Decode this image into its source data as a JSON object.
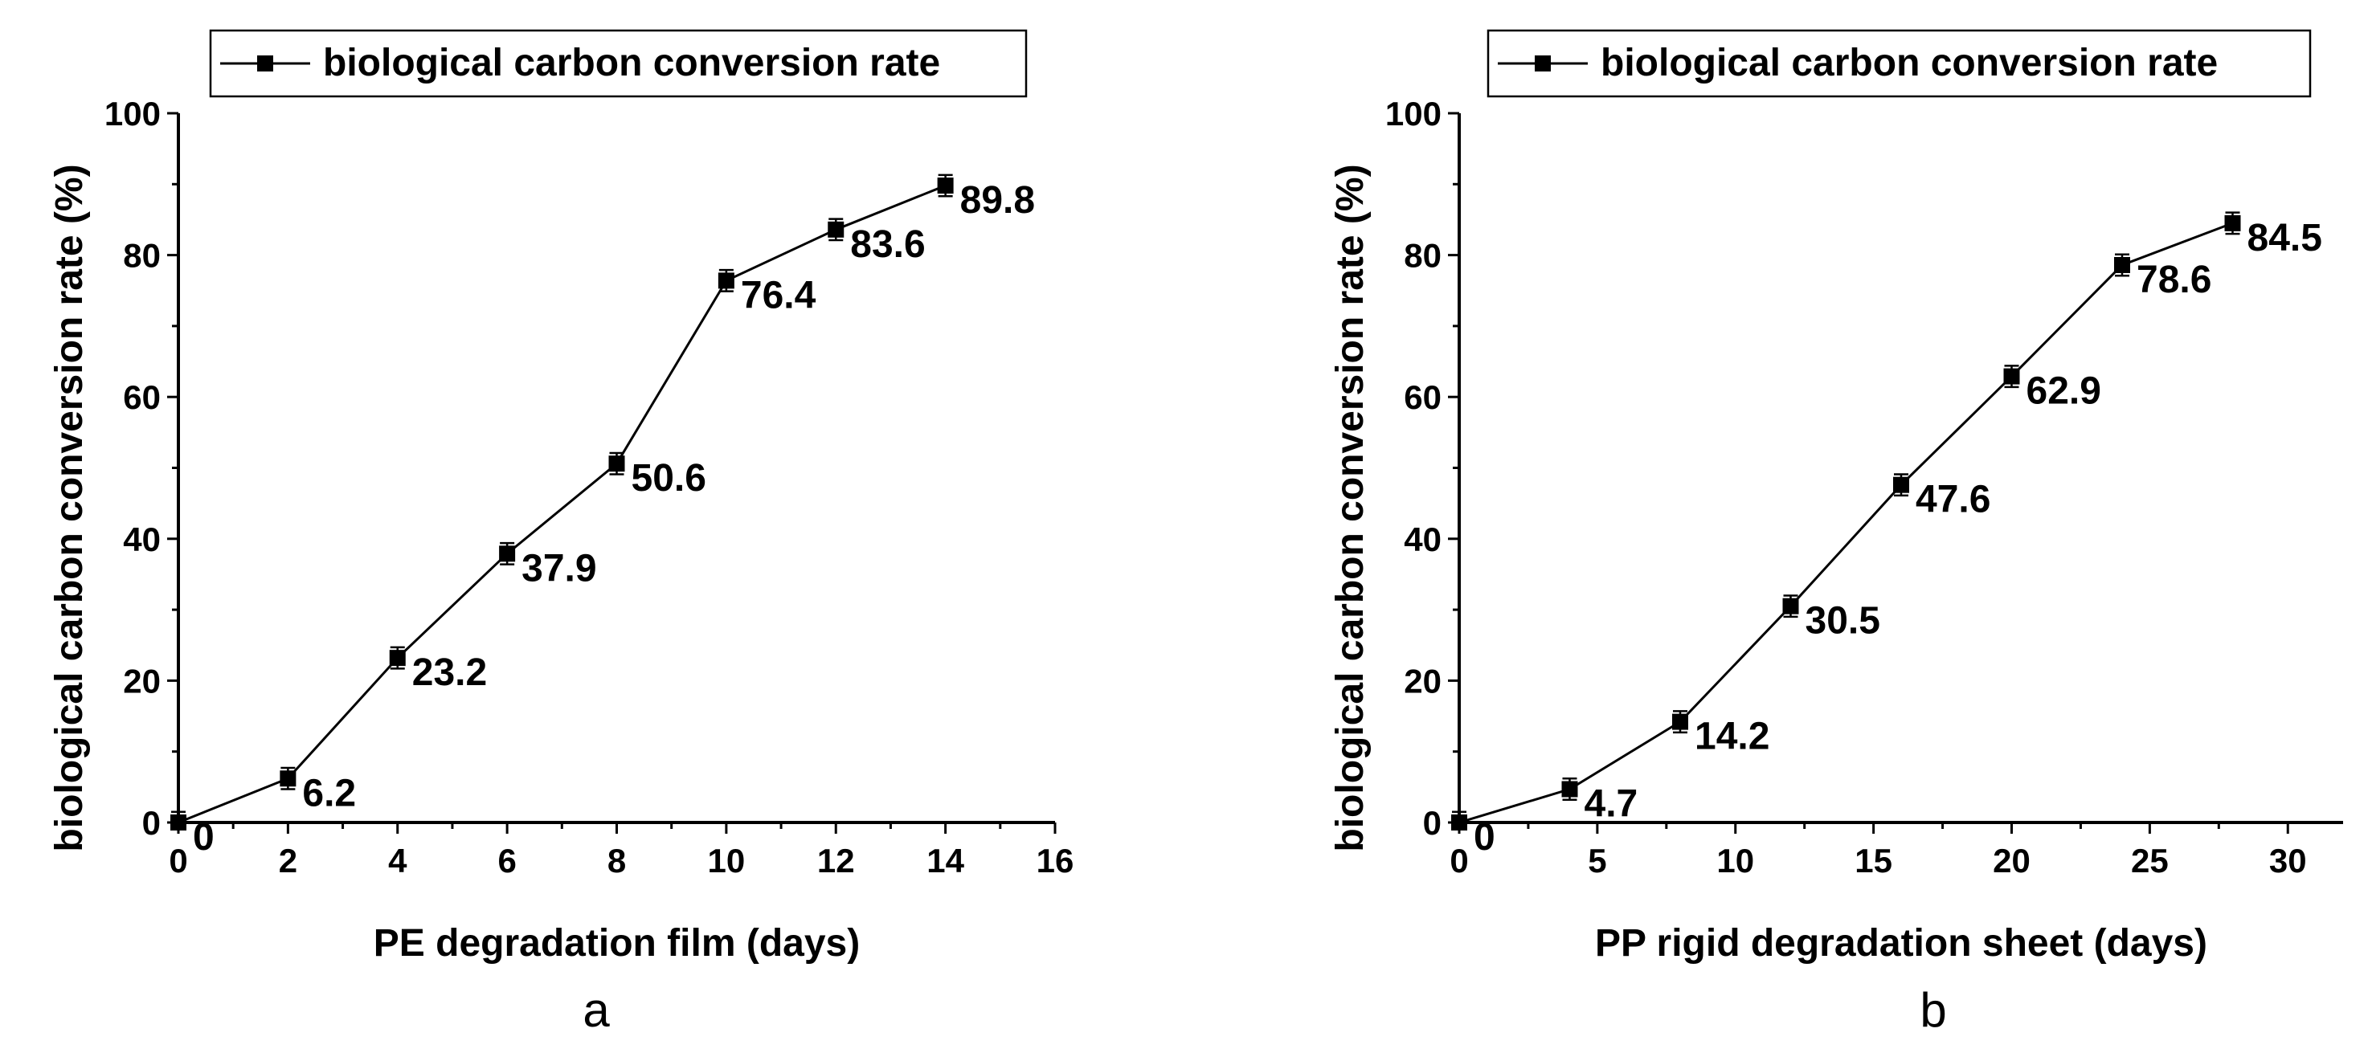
{
  "chart_data": [
    {
      "type": "line",
      "panel_label": "a",
      "legend": [
        "biological carbon conversion rate"
      ],
      "xlabel": "PE degradation film (days)",
      "ylabel": "biological carbon conversion rate (%)",
      "xlim": [
        0,
        16
      ],
      "ylim": [
        0,
        100
      ],
      "x_ticks": [
        0,
        2,
        4,
        6,
        8,
        10,
        12,
        14,
        16
      ],
      "y_ticks": [
        0,
        20,
        40,
        60,
        80,
        100
      ],
      "series": [
        {
          "name": "biological carbon conversion rate",
          "x": [
            0,
            2,
            4,
            6,
            8,
            10,
            12,
            14
          ],
          "y": [
            0,
            6.2,
            23.2,
            37.9,
            50.6,
            76.4,
            83.6,
            89.8
          ],
          "labels": [
            "0",
            "6.2",
            "23.2",
            "37.9",
            "50.6",
            "76.4",
            "83.6",
            "89.8"
          ],
          "error": 1.5
        }
      ]
    },
    {
      "type": "line",
      "panel_label": "b",
      "legend": [
        "biological carbon conversion rate"
      ],
      "xlabel": "PP rigid degradation sheet (days)",
      "ylabel": "biological carbon conversion rate (%)",
      "xlim": [
        0,
        32
      ],
      "ylim": [
        0,
        100
      ],
      "x_ticks": [
        0,
        5,
        10,
        15,
        20,
        25,
        30
      ],
      "y_ticks": [
        0,
        20,
        40,
        60,
        80,
        100
      ],
      "series": [
        {
          "name": "biological carbon conversion rate",
          "x": [
            0,
            4,
            8,
            12,
            16,
            20,
            24,
            28
          ],
          "y": [
            0,
            4.7,
            14.2,
            30.5,
            47.6,
            62.9,
            78.6,
            84.5
          ],
          "labels": [
            "0",
            "4.7",
            "14.2",
            "30.5",
            "47.6",
            "62.9",
            "78.6",
            "84.5"
          ],
          "error": 1.5
        }
      ]
    }
  ]
}
